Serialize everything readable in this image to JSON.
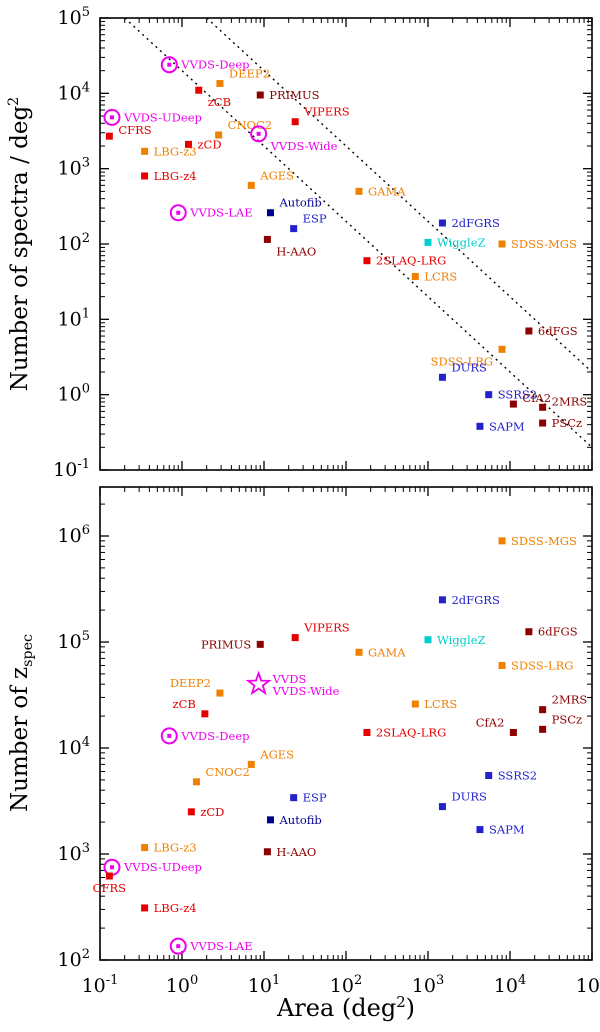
{
  "palette": {
    "magenta": "#ee00ee",
    "orange": "#f08000",
    "red": "#e60000",
    "darkred": "#8b0000",
    "blue": "#2222cc",
    "navy": "#000090",
    "cyan": "#00cdcd",
    "frame": "#000000"
  },
  "axes": {
    "x": {
      "scale": "log",
      "title": {
        "pre": "Area (deg",
        "sup": "2",
        "post": ")"
      },
      "tick_exponents": [
        -1,
        0,
        1,
        2,
        3,
        4,
        5
      ]
    },
    "y_top": {
      "scale": "log",
      "title": {
        "pre": "Number of spectra / deg",
        "sup": "2"
      },
      "tick_exponents": [
        5,
        4,
        3,
        2,
        1,
        0,
        -1
      ]
    },
    "y_bottom": {
      "scale": "log",
      "title": {
        "pre": "Number of z",
        "sub": "spec"
      },
      "tick_exponents": [
        6,
        5,
        4,
        3,
        2
      ]
    }
  },
  "chart_data": [
    {
      "type": "scatter",
      "panel": "top",
      "xlabel": "Area (deg2)",
      "ylabel": "Number of spectra / deg2",
      "xlim": [
        0.1,
        100000
      ],
      "ylim": [
        0.1,
        100000
      ],
      "grid": false,
      "dotted_guide_totals": [
        20000,
        200000
      ],
      "points": [
        {
          "name": "VVDS-Deep",
          "x": 0.7,
          "y": 24000,
          "marker": "circle",
          "color": "magenta",
          "labels": [
            {
              "text": "VVDS-Deep",
              "pos": "right"
            }
          ]
        },
        {
          "name": "VVDS-UDeep",
          "x": 0.14,
          "y": 4800,
          "marker": "circle",
          "color": "magenta",
          "labels": [
            {
              "text": "VVDS-UDeep",
              "pos": "right"
            }
          ]
        },
        {
          "name": "CFRS",
          "x": 0.13,
          "y": 2700,
          "marker": "square",
          "color": "red",
          "labels": [
            {
              "text": "CFRS",
              "pos": "right",
              "dy": -2
            }
          ]
        },
        {
          "name": "DEEP2",
          "x": 2.9,
          "y": 13500,
          "marker": "square",
          "color": "orange",
          "labels": [
            {
              "text": "DEEP2",
              "pos": "above-right"
            }
          ]
        },
        {
          "name": "zCB",
          "x": 1.6,
          "y": 11000,
          "marker": "square",
          "color": "red",
          "labels": [
            {
              "text": "zCB",
              "pos": "below-right"
            }
          ]
        },
        {
          "name": "PRIMUS",
          "x": 9,
          "y": 9500,
          "marker": "square",
          "color": "darkred",
          "labels": [
            {
              "text": "PRIMUS",
              "pos": "right"
            }
          ]
        },
        {
          "name": "CNOC2",
          "x": 2.8,
          "y": 2800,
          "marker": "square",
          "color": "orange",
          "labels": [
            {
              "text": "CNOC2",
              "pos": "above-right"
            }
          ]
        },
        {
          "name": "VIPERS",
          "x": 24,
          "y": 4200,
          "marker": "square",
          "color": "red",
          "labels": [
            {
              "text": "VIPERS",
              "pos": "above-right"
            }
          ]
        },
        {
          "name": "VVDS-Wide",
          "x": 8.6,
          "y": 2900,
          "marker": "circle",
          "color": "magenta",
          "labels": [
            {
              "text": "VVDS-Wide",
              "pos": "below-right"
            }
          ]
        },
        {
          "name": "zCD",
          "x": 1.2,
          "y": 2100,
          "marker": "square",
          "color": "red",
          "labels": [
            {
              "text": "zCD",
              "pos": "right"
            }
          ]
        },
        {
          "name": "LBG-z3",
          "x": 0.35,
          "y": 1700,
          "marker": "square",
          "color": "orange",
          "labels": [
            {
              "text": "LBG-z3",
              "pos": "right"
            }
          ]
        },
        {
          "name": "LBG-z4",
          "x": 0.35,
          "y": 800,
          "marker": "square",
          "color": "red",
          "labels": [
            {
              "text": "LBG-z4",
              "pos": "right"
            }
          ]
        },
        {
          "name": "AGES",
          "x": 7,
          "y": 600,
          "marker": "square",
          "color": "orange",
          "labels": [
            {
              "text": "AGES",
              "pos": "above-right"
            }
          ]
        },
        {
          "name": "GAMA",
          "x": 144,
          "y": 500,
          "marker": "square",
          "color": "orange",
          "labels": [
            {
              "text": "GAMA",
              "pos": "right"
            }
          ]
        },
        {
          "name": "Autofib",
          "x": 12,
          "y": 260,
          "marker": "square",
          "color": "navy",
          "labels": [
            {
              "text": "Autofib",
              "pos": "above-right"
            }
          ]
        },
        {
          "name": "VVDS-LAE",
          "x": 0.9,
          "y": 260,
          "marker": "circle",
          "color": "magenta",
          "labels": [
            {
              "text": "VVDS-LAE",
              "pos": "right"
            }
          ]
        },
        {
          "name": "ESP",
          "x": 23,
          "y": 160,
          "marker": "square",
          "color": "blue",
          "labels": [
            {
              "text": "ESP",
              "pos": "above-right"
            }
          ]
        },
        {
          "name": "H-AAO",
          "x": 11,
          "y": 115,
          "marker": "square",
          "color": "darkred",
          "labels": [
            {
              "text": "H-AAO",
              "pos": "below-right"
            }
          ]
        },
        {
          "name": "2dFGRS",
          "x": 1500,
          "y": 190,
          "marker": "square",
          "color": "blue",
          "labels": [
            {
              "text": "2dFGRS",
              "pos": "right"
            }
          ]
        },
        {
          "name": "WiggleZ",
          "x": 1000,
          "y": 105,
          "marker": "square",
          "color": "cyan",
          "labels": [
            {
              "text": "WiggleZ",
              "pos": "right"
            }
          ]
        },
        {
          "name": "SDSS-MGS",
          "x": 8000,
          "y": 100,
          "marker": "square",
          "color": "orange",
          "labels": [
            {
              "text": "SDSS-MGS",
              "pos": "right"
            }
          ]
        },
        {
          "name": "2SLAQ-LRG",
          "x": 180,
          "y": 60,
          "marker": "square",
          "color": "red",
          "labels": [
            {
              "text": "2SLAQ-LRG",
              "pos": "right"
            }
          ]
        },
        {
          "name": "LCRS",
          "x": 700,
          "y": 37,
          "marker": "square",
          "color": "orange",
          "labels": [
            {
              "text": "LCRS",
              "pos": "right"
            }
          ]
        },
        {
          "name": "6dFGS",
          "x": 17000,
          "y": 7,
          "marker": "square",
          "color": "darkred",
          "labels": [
            {
              "text": "6dFGS",
              "pos": "right"
            }
          ]
        },
        {
          "name": "SDSS-LRG",
          "x": 8000,
          "y": 4,
          "marker": "square",
          "color": "orange",
          "labels": [
            {
              "text": "SDSS-LRG",
              "pos": "below-left"
            }
          ]
        },
        {
          "name": "DURS",
          "x": 1500,
          "y": 1.7,
          "marker": "square",
          "color": "blue",
          "labels": [
            {
              "text": "DURS",
              "pos": "above-right"
            }
          ]
        },
        {
          "name": "SSRS2",
          "x": 5500,
          "y": 1.0,
          "marker": "square",
          "color": "blue",
          "labels": [
            {
              "text": "SSRS2",
              "pos": "right"
            }
          ]
        },
        {
          "name": "CfA2",
          "x": 11000,
          "y": 0.75,
          "marker": "square",
          "color": "darkred",
          "labels": [
            {
              "text": "CfA2",
              "pos": "right",
              "dy": -2
            }
          ]
        },
        {
          "name": "2MRS",
          "x": 25000,
          "y": 0.68,
          "marker": "square",
          "color": "darkred",
          "labels": [
            {
              "text": "2MRS",
              "pos": "right",
              "dy": -2
            }
          ]
        },
        {
          "name": "SAPM",
          "x": 4300,
          "y": 0.38,
          "marker": "square",
          "color": "blue",
          "labels": [
            {
              "text": "SAPM",
              "pos": "right"
            }
          ]
        },
        {
          "name": "PSCz",
          "x": 25000,
          "y": 0.42,
          "marker": "square",
          "color": "darkred",
          "labels": [
            {
              "text": "PSCz",
              "pos": "right"
            }
          ]
        }
      ]
    },
    {
      "type": "scatter",
      "panel": "bottom",
      "xlabel": "Area (deg2)",
      "ylabel": "Number of z_spec",
      "xlim": [
        0.1,
        100000
      ],
      "ylim": [
        100,
        2900000
      ],
      "grid": false,
      "dotted_guide_totals": [],
      "points": [
        {
          "name": "SDSS-MGS",
          "x": 8000,
          "y": 900000,
          "marker": "square",
          "color": "orange",
          "labels": [
            {
              "text": "SDSS-MGS",
              "pos": "right"
            }
          ]
        },
        {
          "name": "2dFGRS",
          "x": 1500,
          "y": 250000,
          "marker": "square",
          "color": "blue",
          "labels": [
            {
              "text": "2dFGRS",
              "pos": "right"
            }
          ]
        },
        {
          "name": "6dFGS",
          "x": 17000,
          "y": 125000,
          "marker": "square",
          "color": "darkred",
          "labels": [
            {
              "text": "6dFGS",
              "pos": "right"
            }
          ]
        },
        {
          "name": "WiggleZ",
          "x": 1000,
          "y": 105000,
          "marker": "square",
          "color": "cyan",
          "labels": [
            {
              "text": "WiggleZ",
              "pos": "right"
            }
          ]
        },
        {
          "name": "VIPERS",
          "x": 24,
          "y": 110000,
          "marker": "square",
          "color": "red",
          "labels": [
            {
              "text": "VIPERS",
              "pos": "above-right"
            }
          ]
        },
        {
          "name": "PRIMUS",
          "x": 9,
          "y": 95000,
          "marker": "square",
          "color": "darkred",
          "labels": [
            {
              "text": "PRIMUS",
              "pos": "left"
            }
          ]
        },
        {
          "name": "GAMA",
          "x": 144,
          "y": 80000,
          "marker": "square",
          "color": "orange",
          "labels": [
            {
              "text": "GAMA",
              "pos": "right"
            }
          ]
        },
        {
          "name": "SDSS-LRG",
          "x": 8000,
          "y": 60000,
          "marker": "square",
          "color": "orange",
          "labels": [
            {
              "text": "SDSS-LRG",
              "pos": "right"
            }
          ]
        },
        {
          "name": "VVDS",
          "x": 8.6,
          "y": 40000,
          "marker": "star",
          "color": "magenta",
          "labels": [
            {
              "text": "VVDS",
              "pos": "right",
              "dy": -1
            },
            {
              "text": "VVDS-Wide",
              "pos": "right",
              "dy": 11
            }
          ]
        },
        {
          "name": "DEEP2",
          "x": 2.9,
          "y": 33000,
          "marker": "square",
          "color": "orange",
          "labels": [
            {
              "text": "DEEP2",
              "pos": "above-left"
            }
          ]
        },
        {
          "name": "LCRS",
          "x": 700,
          "y": 26000,
          "marker": "square",
          "color": "orange",
          "labels": [
            {
              "text": "LCRS",
              "pos": "right"
            }
          ]
        },
        {
          "name": "2MRS",
          "x": 25000,
          "y": 23000,
          "marker": "square",
          "color": "darkred",
          "labels": [
            {
              "text": "2MRS",
              "pos": "above-right"
            }
          ]
        },
        {
          "name": "zCB",
          "x": 1.9,
          "y": 21000,
          "marker": "square",
          "color": "red",
          "labels": [
            {
              "text": "zCB",
              "pos": "above-left"
            }
          ]
        },
        {
          "name": "PSCz",
          "x": 25000,
          "y": 15000,
          "marker": "square",
          "color": "darkred",
          "labels": [
            {
              "text": "PSCz",
              "pos": "above-right"
            }
          ]
        },
        {
          "name": "CfA2",
          "x": 11000,
          "y": 14000,
          "marker": "square",
          "color": "darkred",
          "labels": [
            {
              "text": "CfA2",
              "pos": "above-left"
            }
          ]
        },
        {
          "name": "2SLAQ-LRG",
          "x": 180,
          "y": 14000,
          "marker": "square",
          "color": "red",
          "labels": [
            {
              "text": "2SLAQ-LRG",
              "pos": "right"
            }
          ]
        },
        {
          "name": "VVDS-Deep",
          "x": 0.7,
          "y": 13000,
          "marker": "circle",
          "color": "magenta",
          "labels": [
            {
              "text": "VVDS-Deep",
              "pos": "right"
            }
          ]
        },
        {
          "name": "SSRS2",
          "x": 5500,
          "y": 5500,
          "marker": "square",
          "color": "blue",
          "labels": [
            {
              "text": "SSRS2",
              "pos": "right"
            }
          ]
        },
        {
          "name": "AGES",
          "x": 7,
          "y": 7000,
          "marker": "square",
          "color": "orange",
          "labels": [
            {
              "text": "AGES",
              "pos": "above-right"
            }
          ]
        },
        {
          "name": "CNOC2",
          "x": 1.5,
          "y": 4800,
          "marker": "square",
          "color": "orange",
          "labels": [
            {
              "text": "CNOC2",
              "pos": "above-right"
            }
          ]
        },
        {
          "name": "ESP",
          "x": 23,
          "y": 3400,
          "marker": "square",
          "color": "blue",
          "labels": [
            {
              "text": "ESP",
              "pos": "right"
            }
          ]
        },
        {
          "name": "zCD",
          "x": 1.3,
          "y": 2500,
          "marker": "square",
          "color": "red",
          "labels": [
            {
              "text": "zCD",
              "pos": "right"
            }
          ]
        },
        {
          "name": "DURS",
          "x": 1500,
          "y": 2800,
          "marker": "square",
          "color": "blue",
          "labels": [
            {
              "text": "DURS",
              "pos": "above-right"
            }
          ]
        },
        {
          "name": "Autofib",
          "x": 12,
          "y": 2100,
          "marker": "square",
          "color": "navy",
          "labels": [
            {
              "text": "Autofib",
              "pos": "right"
            }
          ]
        },
        {
          "name": "SAPM",
          "x": 4300,
          "y": 1700,
          "marker": "square",
          "color": "blue",
          "labels": [
            {
              "text": "SAPM",
              "pos": "right"
            }
          ]
        },
        {
          "name": "LBG-z3",
          "x": 0.35,
          "y": 1150,
          "marker": "square",
          "color": "orange",
          "labels": [
            {
              "text": "LBG-z3",
              "pos": "right"
            }
          ]
        },
        {
          "name": "H-AAO",
          "x": 11,
          "y": 1050,
          "marker": "square",
          "color": "darkred",
          "labels": [
            {
              "text": "H-AAO",
              "pos": "right"
            }
          ]
        },
        {
          "name": "VVDS-UDeep",
          "x": 0.14,
          "y": 750,
          "marker": "circle",
          "color": "magenta",
          "labels": [
            {
              "text": "VVDS-UDeep",
              "pos": "right"
            }
          ]
        },
        {
          "name": "CFRS",
          "x": 0.13,
          "y": 620,
          "marker": "square",
          "color": "red",
          "labels": [
            {
              "text": "CFRS",
              "pos": "below"
            }
          ]
        },
        {
          "name": "LBG-z4",
          "x": 0.35,
          "y": 310,
          "marker": "square",
          "color": "red",
          "labels": [
            {
              "text": "LBG-z4",
              "pos": "right"
            }
          ]
        },
        {
          "name": "VVDS-LAE",
          "x": 0.9,
          "y": 135,
          "marker": "circle",
          "color": "magenta",
          "labels": [
            {
              "text": "VVDS-LAE",
              "pos": "right"
            }
          ]
        }
      ]
    }
  ]
}
